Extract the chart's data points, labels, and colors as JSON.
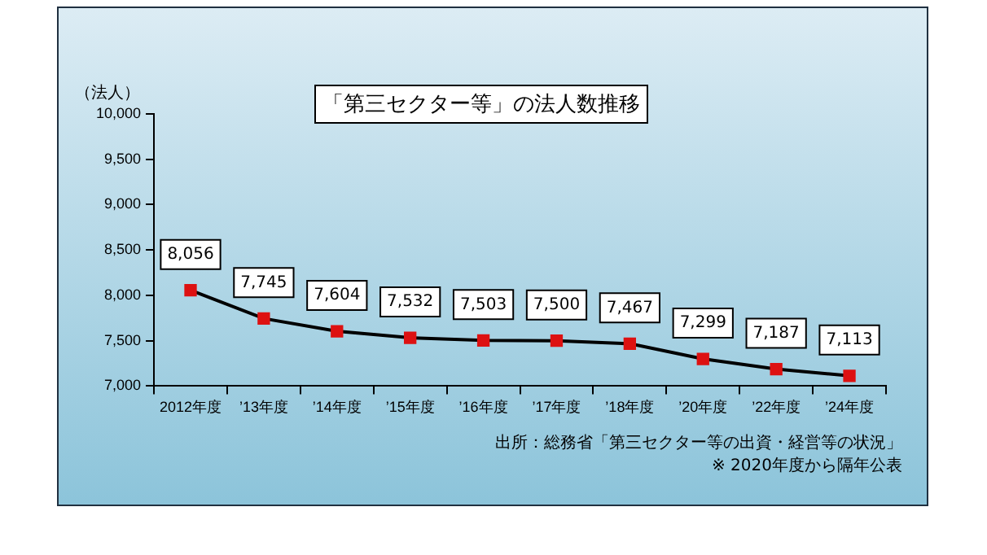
{
  "chart_data": {
    "type": "line",
    "title": "「第三セクター等」の法人数推移",
    "ylabel": "（法人）",
    "categories": [
      "2012年度",
      "’13年度",
      "’14年度",
      "’15年度",
      "’16年度",
      "’17年度",
      "’18年度",
      "’20年度",
      "’22年度",
      "’24年度"
    ],
    "series": [
      {
        "color": "#000000",
        "colors": [
          "#dd1111",
          "#dd1111",
          "#dd1111",
          "#dd1111",
          "#dd1111",
          "#dd1111",
          "#dd1111",
          "#dd1111",
          "#dd1111",
          "#dd1111"
        ],
        "values": [
          8056,
          7745,
          7604,
          7532,
          7503,
          7500,
          7467,
          7299,
          7187,
          7113
        ],
        "value_labels": [
          "8,056",
          "7,745",
          "7,604",
          "7,532",
          "7,503",
          "7,500",
          "7,467",
          "7,299",
          "7,187",
          "7,113"
        ]
      }
    ],
    "marker": "square",
    "grid": false,
    "legend": false,
    "ylim": [
      7000,
      10000
    ],
    "yticks": [
      {
        "value": 7000,
        "label": "7,000"
      },
      {
        "value": 7500,
        "label": "7,500"
      },
      {
        "value": 8000,
        "label": "8,000"
      },
      {
        "value": 8500,
        "label": "8,500"
      },
      {
        "value": 9000,
        "label": "9,000"
      },
      {
        "value": 9500,
        "label": "9,500"
      },
      {
        "value": 10000,
        "label": "10,000"
      }
    ],
    "annotations": [
      "出所：総務省「第三セクター等の出資・経営等の状況」",
      "※ 2020年度から隔年公表"
    ]
  }
}
